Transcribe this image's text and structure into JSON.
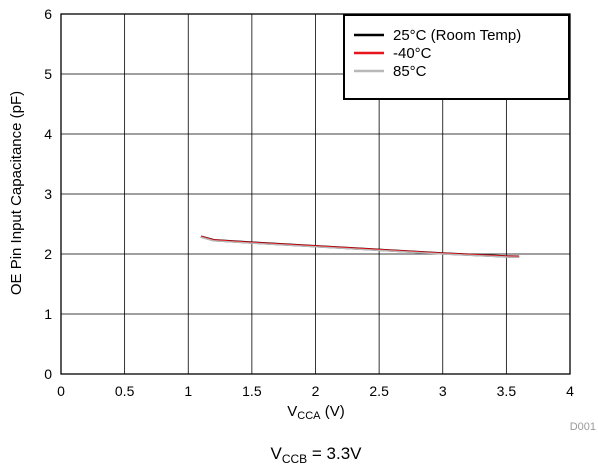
{
  "chart_data": {
    "type": "line",
    "xlim": [
      0,
      4
    ],
    "ylim": [
      0,
      6
    ],
    "x_ticks": [
      "0",
      "0.5",
      "1",
      "1.5",
      "2",
      "2.5",
      "3",
      "3.5",
      "4"
    ],
    "y_ticks": [
      "0",
      "1",
      "2",
      "3",
      "4",
      "5",
      "6"
    ],
    "xlabel": {
      "main": "V",
      "sub": "CCA",
      "suffix": " (V)"
    },
    "ylabel": "OE Pin Input Capacitance (pF)",
    "grid": true,
    "legend_position": "top-right",
    "series": [
      {
        "name": "25°C (Room Temp)",
        "color": "#000000",
        "x": [
          1.1,
          1.2,
          1.5,
          2.0,
          2.5,
          3.0,
          3.5,
          3.6
        ],
        "y": [
          2.29,
          2.23,
          2.19,
          2.13,
          2.07,
          2.01,
          1.96,
          1.955
        ]
      },
      {
        "name": "-40°C",
        "color": "#e8141b",
        "x": [
          1.1,
          1.2,
          1.5,
          2.0,
          2.5,
          3.0,
          3.5,
          3.6
        ],
        "y": [
          2.29,
          2.23,
          2.19,
          2.13,
          2.07,
          2.01,
          1.96,
          1.955
        ]
      },
      {
        "name": "85°C",
        "color": "#b8b8b8",
        "x": [
          1.1,
          1.2,
          1.5,
          2.0,
          2.5,
          3.0,
          3.5,
          3.6
        ],
        "y": [
          2.28,
          2.22,
          2.18,
          2.12,
          2.06,
          2.0,
          1.95,
          1.945
        ]
      }
    ],
    "figure_code": "D001",
    "caption": {
      "main": "V",
      "sub": "CCB",
      "suffix": " = 3.3V"
    }
  }
}
